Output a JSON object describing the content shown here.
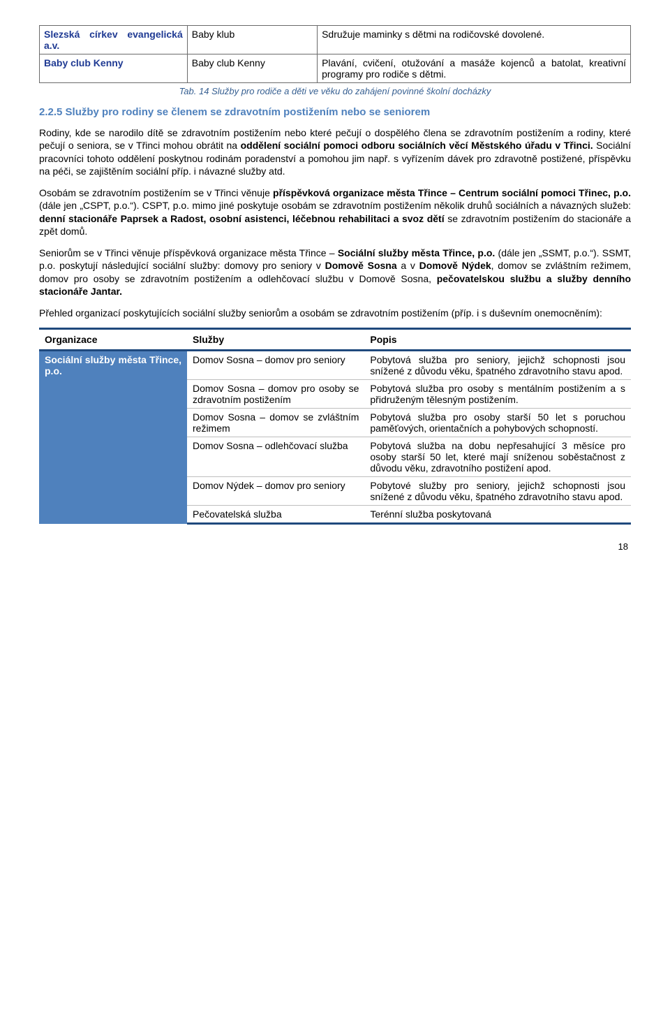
{
  "topTable": {
    "rows": [
      {
        "org": "Slezská církev evangelická a.v.",
        "svc": "Baby klub",
        "desc": "Sdružuje maminky s dětmi na rodičovské dovolené."
      },
      {
        "org": "Baby club Kenny",
        "svc": "Baby club Kenny",
        "desc": "Plavání, cvičení, otužování a masáže kojenců a batolat, kreativní programy pro rodiče s dětmi."
      }
    ],
    "caption": "Tab. 14 Služby pro rodiče a děti ve věku do zahájení povinné školní docházky"
  },
  "sectionHeading": "2.2.5 Služby pro rodiny se členem se zdravotním postižením nebo se seniorem",
  "paragraphs": {
    "p1_a": "Rodiny, kde se narodilo dítě se zdravotním postižením nebo které pečují o dospělého člena se zdravotním postižením a rodiny, které pečují o seniora, se v Třinci mohou obrátit na ",
    "p1_b": "oddělení sociální pomoci odboru sociálních věcí Městského úřadu v Třinci.",
    "p1_c": " Sociální pracovníci tohoto oddělení poskytnou rodinám poradenství a pomohou jim např. s vyřízením dávek pro zdravotně postižené, příspěvku na péči, se zajištěním sociální příp. i návazné služby atd.",
    "p2_a": "Osobám se zdravotním postižením se v Třinci věnuje ",
    "p2_b": "příspěvková organizace města Třince – Centrum sociální pomoci Třinec, p.o.",
    "p2_c": " (dále jen „CSPT, p.o.“). CSPT, p.o. mimo jiné poskytuje osobám se zdravotním postižením několik druhů sociálních a návazných služeb: ",
    "p2_d": "denní stacionáře Paprsek a Radost, osobní asistenci, léčebnou rehabilitaci a svoz dětí",
    "p2_e": " se zdravotním postižením do stacionáře a zpět domů.",
    "p3_a": "Seniorům se v Třinci věnuje příspěvková organizace města Třince – ",
    "p3_b": "Sociální služby města Třince, p.o.",
    "p3_c": " (dále jen „SSMT, p.o.“). SSMT, p.o. poskytují následující sociální služby: domovy pro seniory v ",
    "p3_d": "Domově Sosna",
    "p3_e": " a v ",
    "p3_f": "Domově Nýdek",
    "p3_g": ", domov se zvláštním režimem, domov pro osoby se zdravotním postižením a odlehčovací službu v Domově Sosna, ",
    "p3_h": "pečovatelskou službu a služby denního stacionáře Jantar.",
    "p4": "Přehled organizací poskytujících sociální služby seniorům a osobám se zdravotním postižením (příp. i s duševním onemocněním):"
  },
  "orgTable": {
    "headers": {
      "h1": "Organizace",
      "h2": "Služby",
      "h3": "Popis"
    },
    "orgName": "Sociální služby města Třince, p.o.",
    "rows": [
      {
        "svc": "Domov Sosna – domov pro seniory",
        "desc": "Pobytová služba pro seniory, jejichž schopnosti jsou snížené z důvodu věku, špatného zdravotního stavu apod."
      },
      {
        "svc": "Domov Sosna – domov pro osoby se zdravotním postižením",
        "desc": "Pobytová služba pro osoby s mentálním postižením a s přidruženým tělesným postižením."
      },
      {
        "svc": "Domov Sosna – domov se zvláštním režimem",
        "desc": "Pobytová služba pro osoby starší 50 let s poruchou paměťových, orientačních a pohybových schopností."
      },
      {
        "svc": "Domov Sosna – odlehčovací služba",
        "desc": "Pobytová služba na dobu nepřesahující 3 měsíce pro osoby starší 50 let, které mají sníženou soběstačnost z důvodu věku, zdravotního postižení apod."
      },
      {
        "svc": "Domov Nýdek – domov pro seniory",
        "desc": "Pobytové služby pro seniory, jejichž schopnosti jsou snížené z důvodu věku, špatného zdravotního stavu apod."
      },
      {
        "svc": "Pečovatelská služba",
        "desc": "Terénní služba poskytovaná"
      }
    ]
  },
  "pageNumber": "18"
}
